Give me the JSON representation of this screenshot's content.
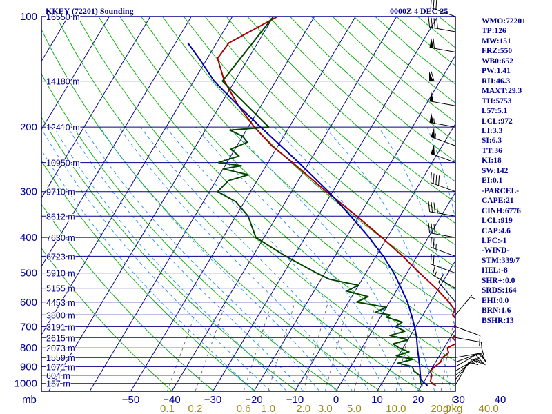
{
  "header": {
    "station": "KKEY (72201) Sounding",
    "time": "0000Z  4 DEC 25"
  },
  "indices": [
    "WMO:72201",
    "TP:126",
    "MW:151",
    "FRZ:550",
    "WB0:652",
    "PW:1.41",
    "RH:46.3",
    "MAXT:29.3",
    "TH:5753",
    "L57:5.1",
    "LCL:972",
    "LI:3.3",
    "SI:6.3",
    "TT:36",
    "KI:18",
    "SW:142",
    "EI:0.1",
    "-PARCEL-",
    "CAPE:21",
    "CINH:6776",
    "LCL:919",
    "CAP:4.6",
    "LFC:-1",
    "-WIND-",
    "STM:339/7",
    "HEL:-8",
    "SHR+:0.0",
    "SRDS:164",
    "EHI:0.0",
    "BRN:1.6",
    "BSHR:13"
  ],
  "colors": {
    "frame": "#00008b",
    "isobar": "#00008b",
    "isotherm": "#00008b",
    "dry_adiabat": "#00aa00",
    "moist_adiabat": "#1e90ff",
    "mixing_ratio": "#666666",
    "temperature": "#aa0000",
    "dewpoint": "#004400",
    "parcel": "#0000aa",
    "wind_barb": "#000000",
    "tick_text": "#00008b",
    "mixing_text": "#9a8a10"
  },
  "chart_data": {
    "type": "line",
    "chart_kind": "skew-T log-P sounding",
    "y_scale": "log",
    "y_axis_unit": "mb",
    "x_axis_unit": "C",
    "x_tick_labels": [
      "−50",
      "−40",
      "−30",
      "−20",
      "−10",
      "0",
      "10",
      "20",
      "30",
      "40",
      "C"
    ],
    "pressure_ticks": [
      100,
      200,
      300,
      400,
      500,
      600,
      700,
      800,
      900,
      1000
    ],
    "mixing_ratio_unit": "g/kg",
    "mixing_ratio_labels": [
      "0.1",
      "0.2",
      "0.6",
      "1.0",
      "2.0",
      "3.0",
      "5.0",
      "10.0",
      "20.0",
      "40.0"
    ],
    "height_labels": [
      {
        "p": 100,
        "text": "16550 m"
      },
      {
        "p": 150,
        "text": "14180 m"
      },
      {
        "p": 200,
        "text": "12410 m"
      },
      {
        "p": 250,
        "text": "10950 m"
      },
      {
        "p": 300,
        "text": "9710 m"
      },
      {
        "p": 350,
        "text": "8612 m"
      },
      {
        "p": 400,
        "text": "7630 m"
      },
      {
        "p": 450,
        "text": "6723 m"
      },
      {
        "p": 500,
        "text": "5910 m"
      },
      {
        "p": 550,
        "text": "5155 m"
      },
      {
        "p": 600,
        "text": "4453 m"
      },
      {
        "p": 650,
        "text": "3800 m"
      },
      {
        "p": 700,
        "text": "3191 m"
      },
      {
        "p": 750,
        "text": "2615 m"
      },
      {
        "p": 800,
        "text": "2073 m"
      },
      {
        "p": 850,
        "text": "1559 m"
      },
      {
        "p": 900,
        "text": "1071 m"
      },
      {
        "p": 950,
        "text": "604 m"
      },
      {
        "p": 1000,
        "text": "157 m"
      }
    ],
    "series": [
      {
        "role": "temperature",
        "points": [
          [
            1014,
            23.5
          ],
          [
            1000,
            22.3
          ],
          [
            985,
            21.5
          ],
          [
            950,
            21.0
          ],
          [
            925,
            20.0
          ],
          [
            900,
            20.5
          ],
          [
            875,
            21.2
          ],
          [
            850,
            21.0
          ],
          [
            825,
            21.8
          ],
          [
            800,
            20.8
          ],
          [
            775,
            22.5
          ],
          [
            750,
            20.5
          ],
          [
            725,
            21.5
          ],
          [
            700,
            19.3
          ],
          [
            675,
            19.3
          ],
          [
            650,
            17.2
          ],
          [
            630,
            17.0
          ],
          [
            600,
            14.5
          ],
          [
            550,
            9.3
          ],
          [
            500,
            3.1
          ],
          [
            450,
            -3.5
          ],
          [
            400,
            -11.3
          ],
          [
            350,
            -20.5
          ],
          [
            300,
            -31.5
          ],
          [
            275,
            -37.5
          ],
          [
            250,
            -44.0
          ],
          [
            225,
            -51.5
          ],
          [
            200,
            -58.5
          ],
          [
            175,
            -65.5
          ],
          [
            150,
            -72.5
          ],
          [
            130,
            -77.5
          ],
          [
            118,
            -77.0
          ],
          [
            100,
            -69.0
          ]
        ]
      },
      {
        "role": "dewpoint",
        "points": [
          [
            1014,
            20.2
          ],
          [
            1000,
            19.5
          ],
          [
            975,
            18.8
          ],
          [
            950,
            18.0
          ],
          [
            925,
            16.0
          ],
          [
            900,
            15.0
          ],
          [
            880,
            11.0
          ],
          [
            860,
            14.0
          ],
          [
            840,
            9.5
          ],
          [
            820,
            12.0
          ],
          [
            800,
            9.0
          ],
          [
            780,
            7.0
          ],
          [
            760,
            10.0
          ],
          [
            740,
            5.0
          ],
          [
            720,
            8.0
          ],
          [
            700,
            5.0
          ],
          [
            680,
            6.0
          ],
          [
            660,
            1.5
          ],
          [
            650,
            2.0
          ],
          [
            640,
            -2.0
          ],
          [
            620,
            0.0
          ],
          [
            600,
            -8.0
          ],
          [
            580,
            -6.0
          ],
          [
            560,
            -12.0
          ],
          [
            540,
            -10.0
          ],
          [
            520,
            -18.0
          ],
          [
            500,
            -22.0
          ],
          [
            450,
            -32.0
          ],
          [
            400,
            -42.0
          ],
          [
            350,
            -47.0
          ],
          [
            320,
            -52.0
          ],
          [
            300,
            -58.0
          ],
          [
            280,
            -57.0
          ],
          [
            270,
            -53.0
          ],
          [
            260,
            -60.0
          ],
          [
            255,
            -56.0
          ],
          [
            250,
            -62.0
          ],
          [
            240,
            -58.0
          ],
          [
            230,
            -61.0
          ],
          [
            220,
            -58.0
          ],
          [
            212,
            -60.0
          ],
          [
            204,
            -64.0
          ],
          [
            200,
            -55.0
          ],
          [
            150,
            -73.0
          ],
          [
            100,
            -70.0
          ]
        ]
      },
      {
        "role": "parcel",
        "points": [
          [
            1014,
            21.5
          ],
          [
            990,
            19.8
          ],
          [
            972,
            18.8
          ],
          [
            950,
            18.2
          ],
          [
            925,
            17.5
          ],
          [
            900,
            16.8
          ],
          [
            850,
            15.2
          ],
          [
            800,
            13.5
          ],
          [
            750,
            11.8
          ],
          [
            700,
            9.7
          ],
          [
            650,
            7.2
          ],
          [
            600,
            4.4
          ],
          [
            550,
            0.8
          ],
          [
            500,
            -3.2
          ],
          [
            450,
            -8.2
          ],
          [
            400,
            -14.4
          ],
          [
            350,
            -22.0
          ],
          [
            300,
            -31.0
          ],
          [
            250,
            -42.5
          ],
          [
            200,
            -57.0
          ],
          [
            175,
            -65.5
          ],
          [
            150,
            -75.0
          ],
          [
            130,
            -82.0
          ],
          [
            118,
            -87.0
          ]
        ]
      }
    ],
    "wind_profile": [
      {
        "p": 1010,
        "dir": 30,
        "spd": 10
      },
      {
        "p": 975,
        "dir": 40,
        "spd": 15
      },
      {
        "p": 950,
        "dir": 50,
        "spd": 15
      },
      {
        "p": 925,
        "dir": 60,
        "spd": 15
      },
      {
        "p": 900,
        "dir": 60,
        "spd": 15
      },
      {
        "p": 875,
        "dir": 70,
        "spd": 10
      },
      {
        "p": 850,
        "dir": 80,
        "spd": 10
      },
      {
        "p": 800,
        "dir": 90,
        "spd": 10
      },
      {
        "p": 750,
        "dir": 100,
        "spd": 10
      },
      {
        "p": 700,
        "dir": 110,
        "spd": 10
      },
      {
        "p": 650,
        "dir": 40,
        "spd": 5
      },
      {
        "p": 600,
        "dir": 320,
        "spd": 10
      },
      {
        "p": 550,
        "dir": 300,
        "spd": 15
      },
      {
        "p": 500,
        "dir": 290,
        "spd": 20
      },
      {
        "p": 450,
        "dir": 290,
        "spd": 25
      },
      {
        "p": 400,
        "dir": 280,
        "spd": 30
      },
      {
        "p": 350,
        "dir": 280,
        "spd": 35
      },
      {
        "p": 300,
        "dir": 290,
        "spd": 40
      },
      {
        "p": 250,
        "dir": 290,
        "spd": 50
      },
      {
        "p": 225,
        "dir": 290,
        "spd": 55
      },
      {
        "p": 200,
        "dir": 280,
        "spd": 55
      },
      {
        "p": 175,
        "dir": 280,
        "spd": 50
      },
      {
        "p": 150,
        "dir": 270,
        "spd": 60
      },
      {
        "p": 125,
        "dir": 280,
        "spd": 60
      },
      {
        "p": 110,
        "dir": 280,
        "spd": 40
      },
      {
        "p": 100,
        "dir": 290,
        "spd": 30
      }
    ]
  }
}
